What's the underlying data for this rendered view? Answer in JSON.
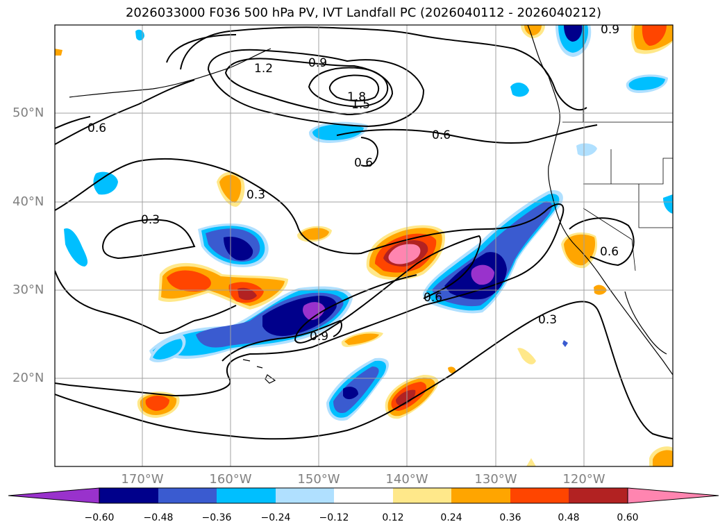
{
  "title": "2026033000 F036 500 hPa PV, IVT Landfall PC (2026040112 - 2026040212)",
  "lat_labels": [
    "50°N",
    "40°N",
    "30°N",
    "20°N"
  ],
  "lon_labels": [
    "170°W",
    "160°W",
    "150°W",
    "140°W",
    "130°W",
    "120°W"
  ],
  "contour_labels": [
    "0.9",
    "1.2",
    "0.9",
    "1.8",
    "1.5",
    "0.6",
    "0.6",
    "0.6",
    "0.3",
    "0.3",
    "0.6",
    "0.9",
    "0.3",
    "0.6"
  ],
  "colorbar": {
    "ticks": [
      "−0.60",
      "−0.48",
      "−0.36",
      "−0.24",
      "−0.12",
      "0.12",
      "0.24",
      "0.36",
      "0.48",
      "0.60"
    ],
    "colors": [
      "#9932cc",
      "#00008b",
      "#3a5bd0",
      "#00bfff",
      "#b0e0ff",
      "#ffffff",
      "#ffe88a",
      "#ffa500",
      "#ff4500",
      "#b22222",
      "#ff85b0"
    ]
  },
  "colors": {
    "contour": "#000000",
    "grid": "#a0a0a0",
    "axis_label": "#808080"
  }
}
